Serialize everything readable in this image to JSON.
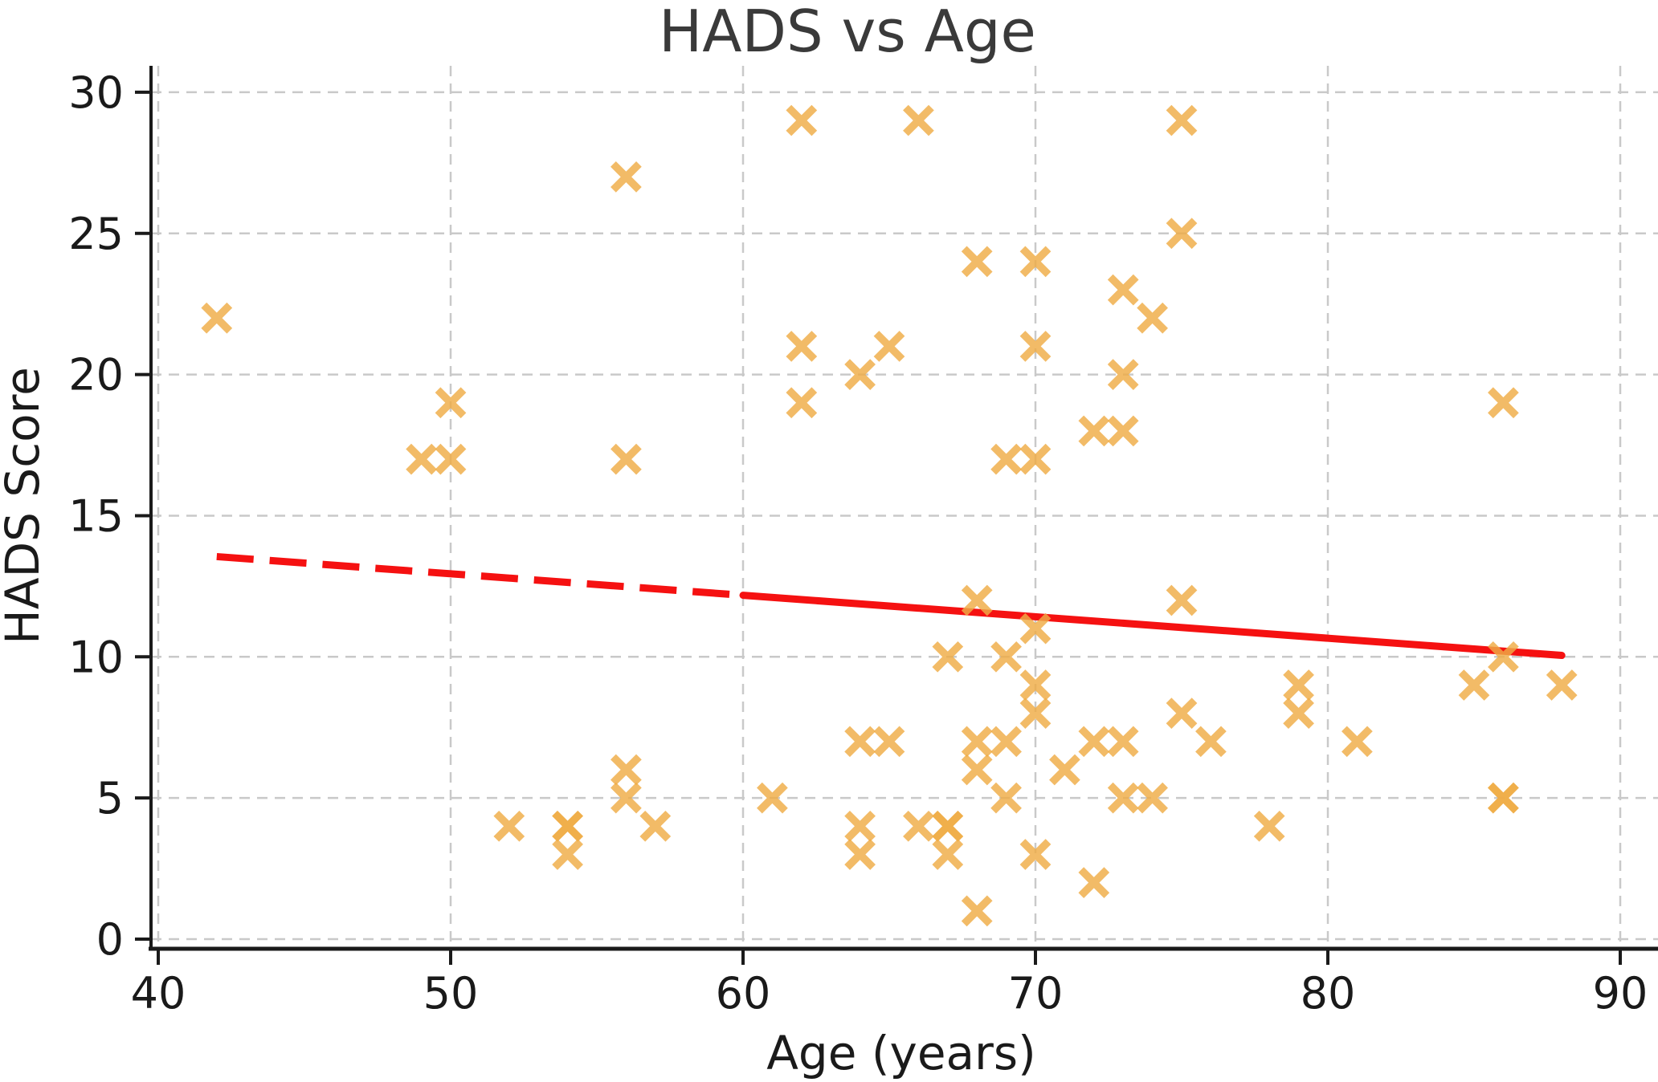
{
  "chart_data": {
    "type": "scatter",
    "title": "HADS vs Age",
    "xlabel": "Age (years)",
    "ylabel": "HADS Score",
    "x_ticks": [
      40,
      50,
      60,
      70,
      80,
      90
    ],
    "y_ticks": [
      0,
      5,
      10,
      15,
      20,
      25,
      30
    ],
    "xlim": [
      39.75,
      91.3
    ],
    "ylim": [
      -0.35,
      30.9
    ],
    "grid": "both, dashed light gray",
    "legend": "none",
    "marker_style": "x",
    "marker_color": "#efac45",
    "trend_color": "#f51111",
    "points": [
      [
        42,
        22
      ],
      [
        49,
        17
      ],
      [
        50,
        17
      ],
      [
        50,
        19
      ],
      [
        52,
        4
      ],
      [
        54,
        4
      ],
      [
        54,
        4
      ],
      [
        54,
        3
      ],
      [
        56,
        27
      ],
      [
        56,
        17
      ],
      [
        56,
        6
      ],
      [
        56,
        5
      ],
      [
        57,
        4
      ],
      [
        61,
        5
      ],
      [
        62,
        29
      ],
      [
        62,
        21
      ],
      [
        62,
        19
      ],
      [
        64,
        20
      ],
      [
        64,
        7
      ],
      [
        64,
        4
      ],
      [
        64,
        3
      ],
      [
        65,
        21
      ],
      [
        65,
        7
      ],
      [
        66,
        29
      ],
      [
        66,
        4
      ],
      [
        67,
        10
      ],
      [
        67,
        4
      ],
      [
        67,
        4
      ],
      [
        67,
        3
      ],
      [
        68,
        24
      ],
      [
        68,
        12
      ],
      [
        68,
        7
      ],
      [
        68,
        6
      ],
      [
        68,
        1
      ],
      [
        69,
        17
      ],
      [
        69,
        10
      ],
      [
        69,
        7
      ],
      [
        69,
        5
      ],
      [
        70,
        24
      ],
      [
        70,
        21
      ],
      [
        70,
        17
      ],
      [
        70,
        11
      ],
      [
        70,
        9
      ],
      [
        70,
        8
      ],
      [
        70,
        3
      ],
      [
        71,
        6
      ],
      [
        72,
        18
      ],
      [
        72,
        7
      ],
      [
        72,
        2
      ],
      [
        73,
        23
      ],
      [
        73,
        20
      ],
      [
        73,
        18
      ],
      [
        73,
        7
      ],
      [
        73,
        5
      ],
      [
        74,
        22
      ],
      [
        74,
        5
      ],
      [
        75,
        29
      ],
      [
        75,
        25
      ],
      [
        75,
        12
      ],
      [
        75,
        8
      ],
      [
        76,
        7
      ],
      [
        78,
        4
      ],
      [
        79,
        9
      ],
      [
        79,
        8
      ],
      [
        81,
        7
      ],
      [
        85,
        9
      ],
      [
        86,
        19
      ],
      [
        86,
        10
      ],
      [
        86,
        5
      ],
      [
        86,
        5
      ],
      [
        88,
        9
      ]
    ],
    "trend_line": {
      "style": "dashed red, dashes merging to solid toward right",
      "x1": 42,
      "y1": 13.55,
      "x2": 88,
      "y2": 10.05
    }
  }
}
